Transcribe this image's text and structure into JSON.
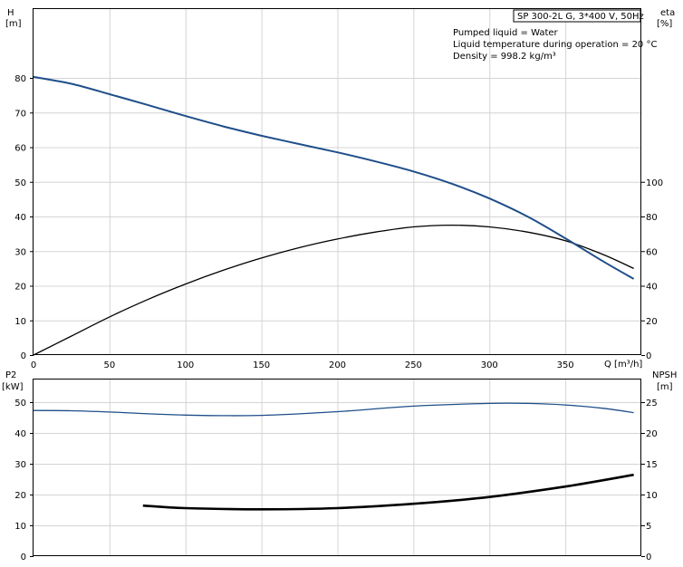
{
  "header": {
    "model_label": "SP 300-2L G, 3*400 V, 50Hz",
    "conditions": [
      "Pumped liquid = Water",
      "Liquid temperature during operation = 20 °C",
      "Density = 998.2 kg/m³"
    ]
  },
  "colors": {
    "head_curve": "#1f4e8a",
    "eta_curve": "#000000",
    "p2_curve": "#1f4e8a",
    "npsh_curve": "#000000",
    "grid": "#d4d4d4"
  },
  "chart_data": [
    {
      "type": "line",
      "title": "",
      "x": {
        "label": "Q [m³/h]",
        "range": [
          0,
          400
        ],
        "ticks": [
          0,
          50,
          100,
          150,
          200,
          250,
          300,
          350
        ]
      },
      "y_left": {
        "label_top": "H",
        "label_unit": "[m]",
        "range": [
          0,
          80
        ],
        "ticks": [
          0,
          10,
          20,
          30,
          40,
          50,
          60,
          70,
          80
        ]
      },
      "y_right": {
        "label_top": "eta",
        "label_unit": "[%]",
        "range": [
          0,
          160
        ],
        "ticks": [
          0,
          20,
          40,
          60,
          80,
          100
        ]
      },
      "grid": true,
      "series": [
        {
          "axis": "left",
          "x": [
            0,
            25,
            50,
            75,
            100,
            125,
            150,
            175,
            200,
            225,
            250,
            275,
            300,
            325,
            350,
            375,
            395
          ],
          "y": [
            80.3,
            78.3,
            75.3,
            72.2,
            69.0,
            66.0,
            63.3,
            60.9,
            58.5,
            55.9,
            53.0,
            49.5,
            45.2,
            40.0,
            33.7,
            27.0,
            22.0
          ]
        },
        {
          "axis": "right",
          "x": [
            0,
            25,
            50,
            75,
            100,
            125,
            150,
            175,
            200,
            225,
            250,
            275,
            300,
            325,
            350,
            375,
            395
          ],
          "y": [
            0,
            11,
            22,
            32,
            41,
            49,
            56,
            62,
            67,
            71,
            74,
            75,
            74,
            71,
            66,
            58,
            50
          ]
        }
      ]
    },
    {
      "type": "line",
      "title": "",
      "x": {
        "label": "",
        "range": [
          0,
          400
        ],
        "ticks": [
          0,
          50,
          100,
          150,
          200,
          250,
          300,
          350
        ]
      },
      "y_left": {
        "label_top": "P2",
        "label_unit": "[kW]",
        "range": [
          0,
          50
        ],
        "ticks": [
          0,
          10,
          20,
          30,
          40,
          50
        ]
      },
      "y_right": {
        "label_top": "NPSH",
        "label_unit": "[m]",
        "range": [
          0,
          25
        ],
        "ticks": [
          0,
          5,
          10,
          15,
          20,
          25
        ]
      },
      "grid": true,
      "series": [
        {
          "axis": "left",
          "x": [
            0,
            25,
            50,
            100,
            150,
            200,
            250,
            300,
            325,
            350,
            375,
            395
          ],
          "y": [
            47.3,
            47.2,
            46.8,
            45.8,
            45.7,
            46.9,
            48.7,
            49.6,
            49.6,
            49.1,
            48.0,
            46.6
          ]
        },
        {
          "axis": "right",
          "x": [
            72,
            100,
            150,
            200,
            250,
            300,
            350,
            395
          ],
          "y": [
            8.2,
            7.8,
            7.6,
            7.8,
            8.5,
            9.6,
            11.3,
            13.2
          ]
        }
      ]
    }
  ]
}
